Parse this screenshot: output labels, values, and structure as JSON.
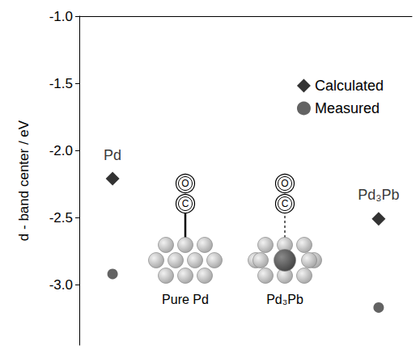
{
  "chart_data": {
    "type": "scatter",
    "y_label": "d - band center / eV",
    "categories": [
      "Pd",
      null,
      null,
      null,
      "Pd₃Pb"
    ],
    "series": [
      {
        "name": "Calculated",
        "color": "#000000",
        "marker": "diamond",
        "values": [
          -2.21,
          null,
          null,
          null,
          -2.51
        ]
      },
      {
        "name": "Measured",
        "color": "#3c3c3c",
        "marker": "circle",
        "values": [
          -2.92,
          null,
          null,
          null,
          -3.17
        ]
      }
    ],
    "ylim": [
      -3.45,
      -1.0
    ],
    "yticks": [
      {
        "value": -3,
        "label": "-3.0"
      },
      -2.5,
      {
        "value": -2,
        "label": "-2.0"
      },
      -1.5,
      {
        "value": -1,
        "label": "-1.0"
      }
    ],
    "grid": false,
    "legend": "upper right",
    "tick_labels": "y",
    "annotations": [
      {
        "text": "Pure Pd",
        "line_style": "solid"
      },
      {
        "text": "Pd₃Pb",
        "line_style": "dashed"
      }
    ],
    "molecule": [
      "C",
      "O"
    ]
  }
}
